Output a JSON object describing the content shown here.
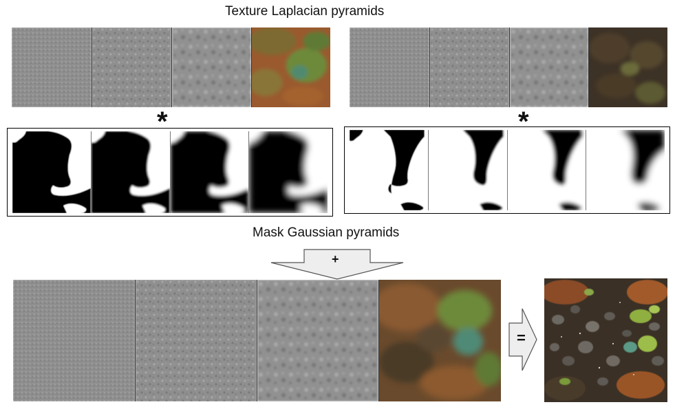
{
  "titles": {
    "top": "Texture Laplacian pyramids",
    "middle": "Mask Gaussian pyramids"
  },
  "operators": {
    "multiply_left": "*",
    "multiply_right": "*",
    "plus": "+",
    "equals": "="
  },
  "colors": {
    "laplacian_gray": "#8f8f8f",
    "soil_red": "#9a5a2e",
    "soil_dark": "#3d3226",
    "plant_green": "#7a9a3a",
    "mask_black": "#000000",
    "mask_white": "#ffffff",
    "arrow_fill": "#eeeeee",
    "arrow_stroke": "#555555"
  }
}
